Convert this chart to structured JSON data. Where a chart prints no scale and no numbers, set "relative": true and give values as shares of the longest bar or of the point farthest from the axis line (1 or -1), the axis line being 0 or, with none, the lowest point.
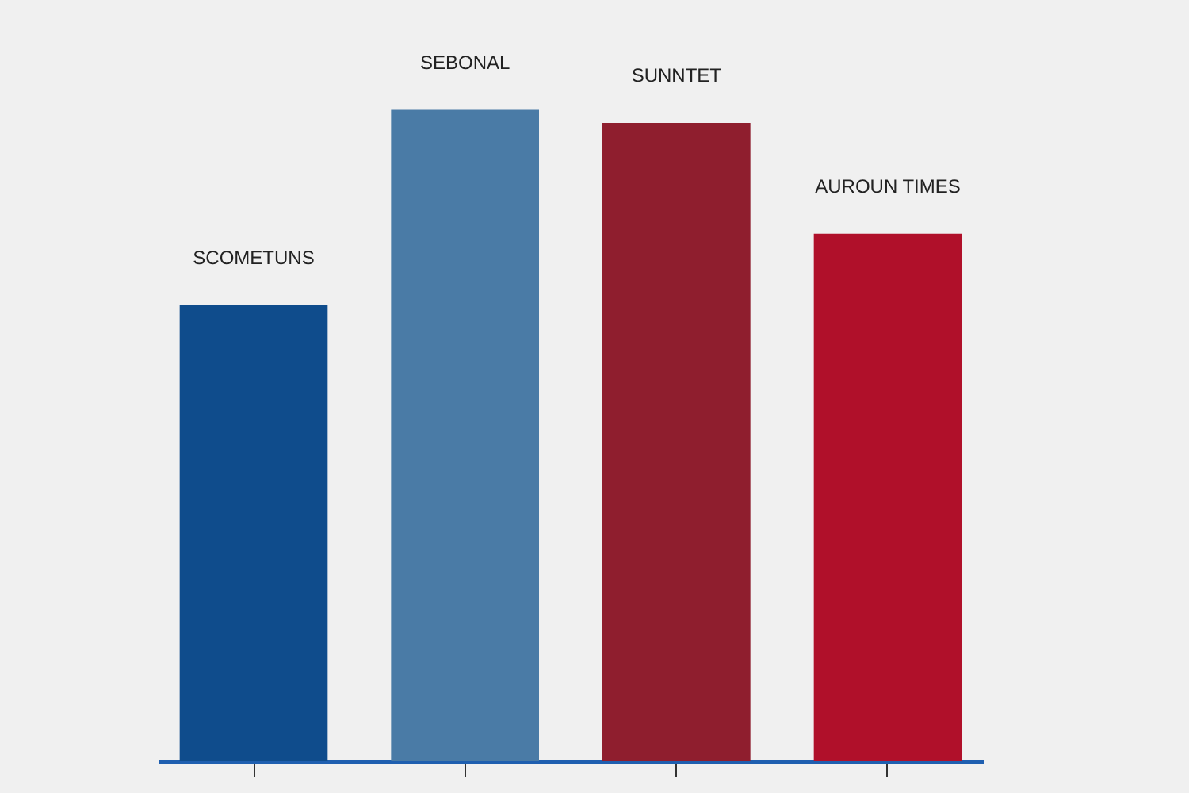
{
  "chart_data": {
    "type": "bar",
    "relative": true,
    "categories": [
      null,
      null,
      null,
      null
    ],
    "values": [
      0.7,
      1,
      0.98,
      0.81
    ],
    "colors": [
      "#0f4c8c",
      "#4a7ba6",
      "#8f1e2e",
      "#b0102a"
    ],
    "annotations": [
      "SCOMETUNS",
      "SEBONAL",
      "SUNNTET",
      "AUROUN TIMES"
    ]
  }
}
